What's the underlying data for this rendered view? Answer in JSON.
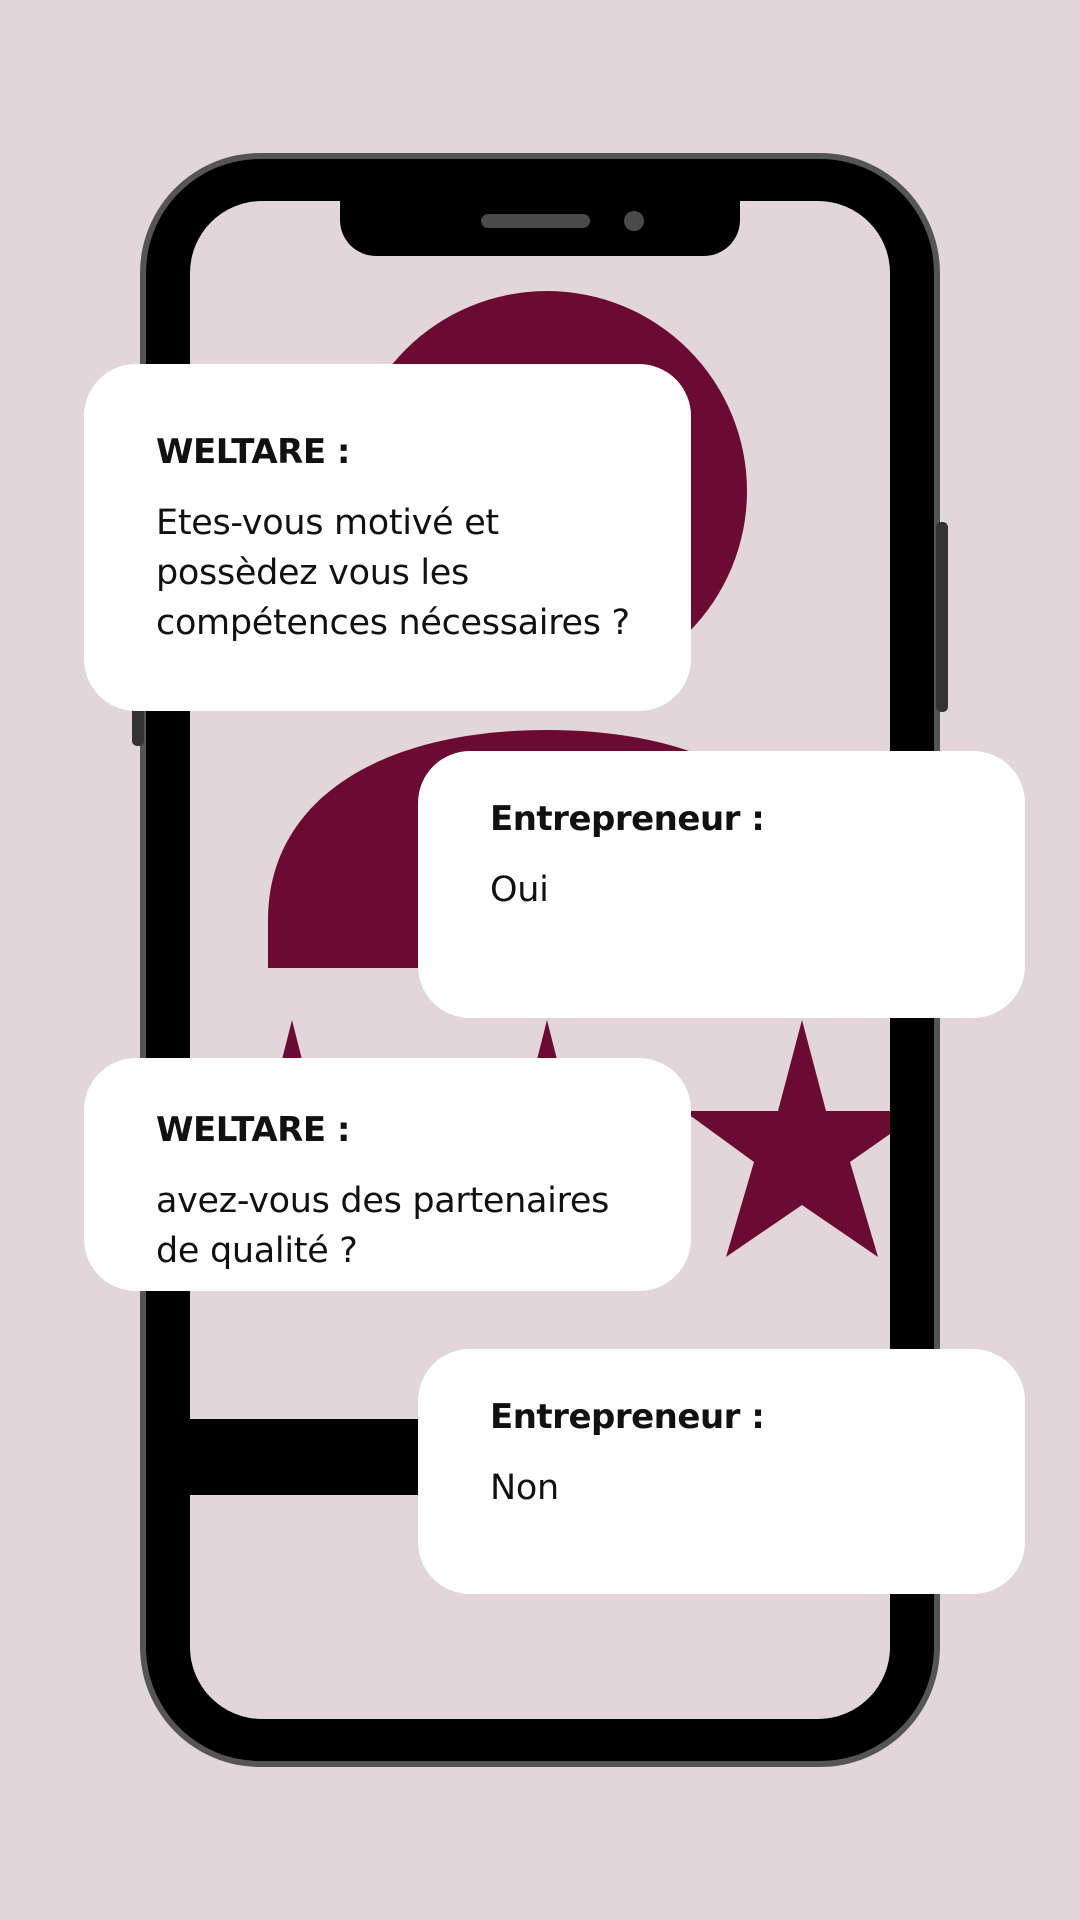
{
  "colors": {
    "background": "#e2d6da",
    "accent": "#6b0b33",
    "phone_frame": "#000000",
    "phone_edge": "#555555",
    "bubble": "#ffffff",
    "text": "#111111"
  },
  "illustration": {
    "icons": [
      "smartphone-icon",
      "user-avatar-icon",
      "star-rating-icon"
    ],
    "rating_stars_visible": 3
  },
  "conversation": [
    {
      "sender": "WELTARE :",
      "message": "Etes-vous motivé et possèdez vous les compétences nécessaires ?"
    },
    {
      "sender": "Entrepreneur :",
      "message": "Oui"
    },
    {
      "sender": "WELTARE :",
      "message": "avez-vous des partenaires de qualité ?"
    },
    {
      "sender": "Entrepreneur :",
      "message": "Non"
    }
  ]
}
